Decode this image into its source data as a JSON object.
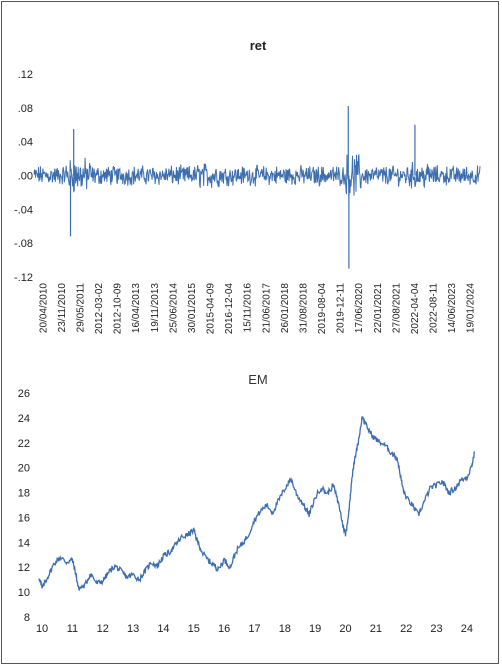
{
  "chart_data": [
    {
      "type": "line",
      "title": "ret",
      "series": [
        {
          "values": []
        }
      ],
      "color": "#3d6eb0",
      "ylim": [
        -0.12,
        0.12
      ],
      "y_ticks": [
        0.12,
        0.08,
        0.04,
        0.0,
        -0.04,
        -0.08,
        -0.12
      ],
      "y_tick_labels": [
        ".12",
        ".08",
        ".04",
        ".00",
        "-.04",
        "-.08",
        "-.12"
      ],
      "x_tick_labels": [
        "20/04/2010",
        "23/11/2010",
        "29/05/2011",
        "2012-03-02",
        "2012-10-09",
        "16/04/2013",
        "19/11/2013",
        "25/06/2014",
        "30/01/2015",
        "2015-04-09",
        "2016-12-04",
        "15/11/2016",
        "21/06/2017",
        "26/01/2018",
        "31/08/2018",
        "2019-08-04",
        "2019-12-11",
        "17/06/2020",
        "22/01/2021",
        "27/08/2021",
        "2022-04-04",
        "2022-08-11",
        "14/06/2023",
        "19/01/2024"
      ],
      "notable_points": [
        {
          "x": 2011.45,
          "y": -0.072
        },
        {
          "x": 2011.55,
          "y": 0.055
        },
        {
          "x": 2020.2,
          "y": 0.082
        },
        {
          "x": 2020.22,
          "y": -0.11
        },
        {
          "x": 2022.3,
          "y": 0.06
        }
      ],
      "grid": false
    },
    {
      "type": "line",
      "title": "EM",
      "color": "#3d6eb0",
      "ylim": [
        8,
        26
      ],
      "xlim": [
        9.8,
        24.3
      ],
      "y_ticks": [
        8,
        10,
        12,
        14,
        16,
        18,
        20,
        22,
        24,
        26
      ],
      "y_tick_labels": [
        "8",
        "10",
        "12",
        "14",
        "16",
        "18",
        "20",
        "22",
        "24",
        "26"
      ],
      "x_ticks": [
        10,
        11,
        12,
        13,
        14,
        15,
        16,
        17,
        18,
        19,
        20,
        21,
        22,
        23,
        24
      ],
      "x_tick_labels": [
        "10",
        "11",
        "12",
        "13",
        "14",
        "15",
        "16",
        "17",
        "18",
        "19",
        "20",
        "21",
        "22",
        "23",
        "24"
      ],
      "series": [
        {
          "x": [
            9.9,
            10.0,
            10.2,
            10.4,
            10.6,
            10.8,
            11.0,
            11.1,
            11.2,
            11.4,
            11.6,
            11.8,
            12.0,
            12.2,
            12.4,
            12.6,
            12.8,
            13.0,
            13.2,
            13.4,
            13.6,
            13.8,
            14.0,
            14.2,
            14.4,
            14.6,
            14.8,
            15.0,
            15.1,
            15.3,
            15.5,
            15.7,
            15.8,
            16.0,
            16.2,
            16.4,
            16.6,
            16.8,
            17.0,
            17.2,
            17.4,
            17.6,
            17.8,
            18.0,
            18.2,
            18.4,
            18.6,
            18.8,
            19.0,
            19.2,
            19.4,
            19.6,
            19.8,
            19.9,
            20.0,
            20.1,
            20.2,
            20.3,
            20.45,
            20.55,
            20.7,
            20.9,
            21.1,
            21.3,
            21.5,
            21.7,
            21.8,
            21.9,
            22.0,
            22.2,
            22.4,
            22.6,
            22.8,
            23.0,
            23.2,
            23.4,
            23.6,
            23.8,
            24.0,
            24.15,
            24.25
          ],
          "y": [
            11.2,
            10.3,
            11.3,
            12.3,
            12.8,
            12.4,
            12.6,
            11.6,
            10.3,
            10.5,
            11.5,
            10.7,
            10.9,
            11.6,
            12.1,
            11.7,
            11.2,
            11.4,
            11.0,
            11.7,
            12.4,
            12.1,
            12.9,
            13.2,
            13.8,
            14.4,
            14.6,
            15.0,
            14.2,
            13.1,
            12.5,
            12.1,
            11.8,
            12.6,
            12.0,
            13.3,
            13.9,
            14.6,
            15.8,
            16.5,
            17.0,
            16.4,
            17.4,
            18.3,
            19.1,
            17.8,
            17.1,
            16.2,
            17.6,
            18.4,
            17.9,
            18.6,
            16.8,
            15.5,
            14.6,
            16.2,
            19.0,
            20.6,
            22.5,
            24.1,
            23.3,
            22.5,
            22.1,
            21.8,
            21.2,
            20.8,
            19.5,
            18.2,
            17.6,
            17.0,
            16.2,
            17.3,
            18.4,
            18.6,
            18.9,
            18.0,
            18.3,
            19.0,
            19.2,
            20.1,
            21.2
          ]
        }
      ],
      "grid": false
    }
  ]
}
